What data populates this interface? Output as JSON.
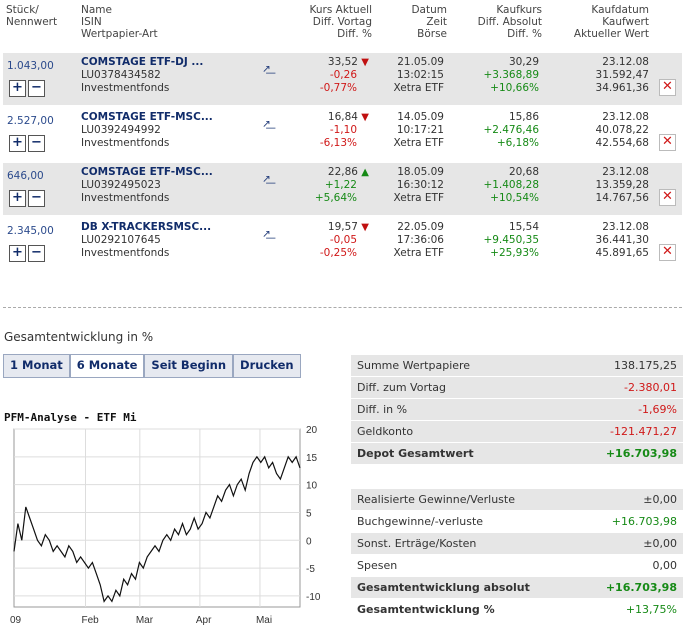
{
  "header": {
    "col1": [
      "Stück/",
      "Nennwert"
    ],
    "col2": [
      "Name",
      "ISIN",
      "Wertpapier-Art"
    ],
    "col3": [
      "Kurs Aktuell",
      "Diff. Vortag",
      "Diff. %"
    ],
    "col4": [
      "Datum",
      "Zeit",
      "Börse"
    ],
    "col5": [
      "Kaufkurs",
      "Diff. Absolut",
      "Diff. %"
    ],
    "col6": [
      "Kaufdatum",
      "Kaufwert",
      "Aktueller Wert"
    ]
  },
  "positions": [
    {
      "qty": "1.043,00",
      "name": "COMSTAGE ETF-DJ ...",
      "isin": "LU0378434582",
      "type": "Investmentfonds",
      "price": "33,52",
      "trend": "down",
      "diff_prev": "-0,26",
      "diff_pct": "-0,77%",
      "date": "21.05.09",
      "time": "13:02:15",
      "exchange": "Xetra ETF",
      "buy_price": "30,29",
      "diff_abs": "+3.368,89",
      "diff_abs_pct": "+10,66%",
      "buy_date": "23.12.08",
      "buy_value": "31.592,47",
      "current_value": "34.961,36"
    },
    {
      "qty": "2.527,00",
      "name": "COMSTAGE ETF-MSC...",
      "isin": "LU0392494992",
      "type": "Investmentfonds",
      "price": "16,84",
      "trend": "down",
      "diff_prev": "-1,10",
      "diff_pct": "-6,13%",
      "date": "14.05.09",
      "time": "10:17:21",
      "exchange": "Xetra ETF",
      "buy_price": "15,86",
      "diff_abs": "+2.476,46",
      "diff_abs_pct": "+6,18%",
      "buy_date": "23.12.08",
      "buy_value": "40.078,22",
      "current_value": "42.554,68"
    },
    {
      "qty": "646,00",
      "name": "COMSTAGE ETF-MSC...",
      "isin": "LU0392495023",
      "type": "Investmentfonds",
      "price": "22,86",
      "trend": "up",
      "diff_prev": "+1,22",
      "diff_pct": "+5,64%",
      "date": "18.05.09",
      "time": "16:30:12",
      "exchange": "Xetra ETF",
      "buy_price": "20,68",
      "diff_abs": "+1.408,28",
      "diff_abs_pct": "+10,54%",
      "buy_date": "23.12.08",
      "buy_value": "13.359,28",
      "current_value": "14.767,56"
    },
    {
      "qty": "2.345,00",
      "name": "DB X-TRACKERSMSC...",
      "isin": "LU0292107645",
      "type": "Investmentfonds",
      "price": "19,57",
      "trend": "down",
      "diff_prev": "-0,05",
      "diff_pct": "-0,25%",
      "date": "22.05.09",
      "time": "17:36:06",
      "exchange": "Xetra ETF",
      "buy_price": "15,54",
      "diff_abs": "+9.450,35",
      "diff_abs_pct": "+25,93%",
      "buy_date": "23.12.08",
      "buy_value": "36.441,30",
      "current_value": "45.891,65"
    }
  ],
  "section_title": "Gesamtentwicklung in %",
  "tabs": [
    "1 Monat",
    "6 Monate",
    "Seit Beginn",
    "Drucken"
  ],
  "active_tab": "6 Monate",
  "chart_title": "PFM-Analyse - ETF Mi",
  "chart_data": {
    "type": "line",
    "x_ticks": [
      "09",
      "Feb",
      "Mar",
      "Apr",
      "Mai"
    ],
    "y_ticks": [
      "20",
      "15",
      "10",
      "5",
      "0",
      "-5",
      "-10"
    ],
    "ylim": [
      -12,
      20
    ],
    "x": [
      0,
      2,
      4,
      6,
      8,
      10,
      12,
      14,
      16,
      18,
      20,
      22,
      24,
      26,
      28,
      30,
      32,
      34,
      36,
      38,
      40,
      42,
      44,
      46,
      48,
      50,
      52,
      54,
      56,
      58,
      60,
      62,
      64,
      66,
      68,
      70,
      72,
      74,
      76,
      78,
      80,
      82,
      84,
      86,
      88,
      90,
      92,
      94,
      96,
      98,
      100,
      102,
      104,
      106,
      108,
      110,
      112,
      114,
      116,
      118,
      120,
      122,
      124,
      126,
      128,
      130,
      132,
      134,
      136,
      138,
      140,
      142,
      144,
      146
    ],
    "values": [
      -2,
      3,
      0,
      6,
      4,
      2,
      0,
      -1,
      1,
      0,
      -2,
      -1,
      -2,
      -3,
      -1,
      -2,
      -4,
      -3,
      -4,
      -5,
      -4,
      -6,
      -8,
      -11,
      -10,
      -11,
      -9,
      -10,
      -7,
      -8,
      -6,
      -7,
      -4,
      -5,
      -3,
      -2,
      -1,
      -2,
      0,
      1,
      0,
      2,
      1,
      3,
      1,
      2,
      4,
      2,
      3,
      5,
      4,
      6,
      8,
      7,
      9,
      10,
      8,
      10,
      11,
      9,
      12,
      14,
      15,
      14,
      15,
      13,
      14,
      12,
      11,
      13,
      15,
      14,
      15,
      13
    ]
  },
  "summary": [
    {
      "label": "Summe Wertpapiere",
      "value": "138.175,25",
      "style": "normal",
      "shade": true
    },
    {
      "label": "Diff. zum Vortag",
      "value": "-2.380,01",
      "style": "red",
      "shade": true
    },
    {
      "label": "Diff. in %",
      "value": "-1,69%",
      "style": "red",
      "shade": true
    },
    {
      "label": "Geldkonto",
      "value": "-121.471,27",
      "style": "red",
      "shade": true
    },
    {
      "label": "Depot Gesamtwert",
      "value": "+16.703,98",
      "style": "green-bold",
      "shade": true
    },
    {
      "label": "Realisierte Gewinne/Verluste",
      "value": "±0,00",
      "style": "normal",
      "shade": true
    },
    {
      "label": "Buchgewinne/-verluste",
      "value": "+16.703,98",
      "style": "green",
      "shade": false
    },
    {
      "label": "Sonst. Erträge/Kosten",
      "value": "±0,00",
      "style": "normal",
      "shade": true
    },
    {
      "label": "Spesen",
      "value": "0,00",
      "style": "normal",
      "shade": false
    },
    {
      "label": "Gesamtentwicklung absolut",
      "value": "+16.703,98",
      "style": "green-bold",
      "shade": true
    },
    {
      "label": "Gesamtentwicklung %",
      "value": "+13,75%",
      "style": "green-boldlabel",
      "shade": false
    }
  ],
  "colors": {
    "accent": "#112c6a",
    "positive": "#168a16",
    "negative": "#d01818",
    "shade": "#e6e6e6"
  }
}
